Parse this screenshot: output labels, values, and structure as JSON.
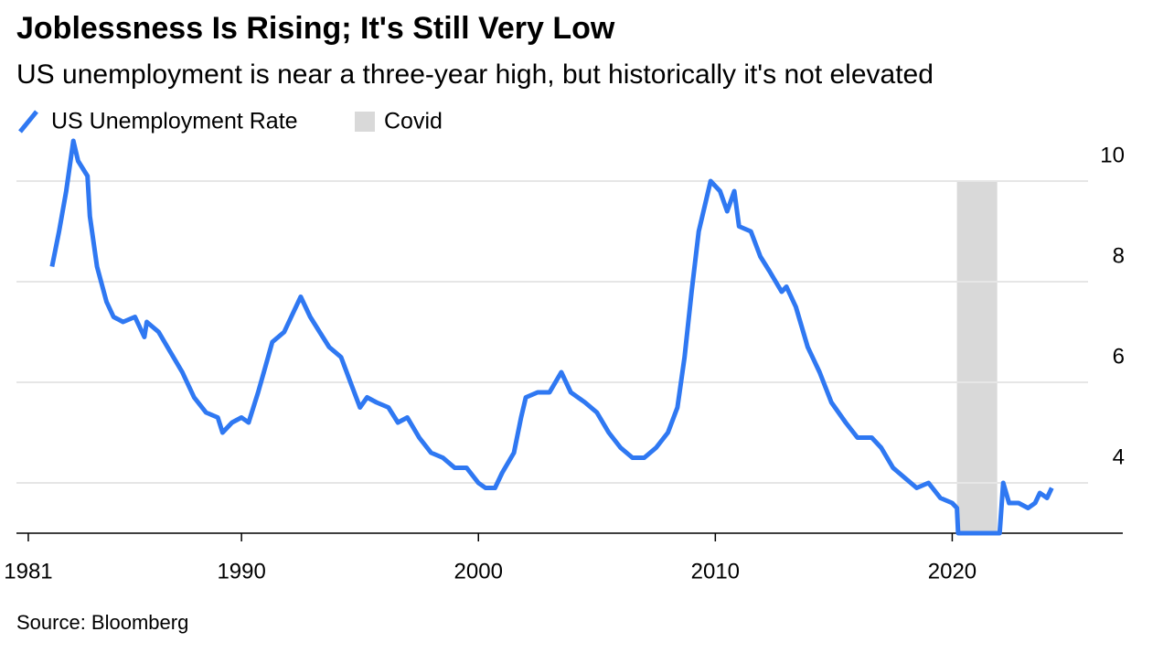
{
  "chart_data": {
    "type": "line",
    "title": "Joblessness Is Rising; It's Still Very Low",
    "subtitle": "US unemployment is near a three-year high, but historically it's not elevated",
    "source": "Source: Bloomberg",
    "x": [
      1982.0,
      1982.3,
      1982.6,
      1982.9,
      1983.1,
      1983.5,
      1983.6,
      1983.9,
      1984.3,
      1984.6,
      1985.0,
      1985.5,
      1985.9,
      1986.0,
      1986.5,
      1987.0,
      1987.5,
      1988.0,
      1988.5,
      1989.0,
      1989.2,
      1989.6,
      1990.0,
      1990.3,
      1990.7,
      1991.0,
      1991.3,
      1991.8,
      1992.2,
      1992.5,
      1992.9,
      1993.3,
      1993.7,
      1994.2,
      1994.6,
      1995.0,
      1995.3,
      1995.7,
      1996.2,
      1996.6,
      1997.0,
      1997.5,
      1998.0,
      1998.5,
      1999.0,
      1999.5,
      2000.0,
      2000.3,
      2000.7,
      2001.0,
      2001.5,
      2001.8,
      2002.0,
      2002.5,
      2003.0,
      2003.5,
      2003.9,
      2004.5,
      2005.0,
      2005.5,
      2006.0,
      2006.5,
      2007.0,
      2007.5,
      2008.0,
      2008.4,
      2008.7,
      2009.0,
      2009.3,
      2009.6,
      2009.8,
      2010.2,
      2010.5,
      2010.8,
      2011.0,
      2011.5,
      2011.9,
      2012.3,
      2012.8,
      2013.0,
      2013.4,
      2013.9,
      2014.4,
      2014.9,
      2015.5,
      2016.0,
      2016.6,
      2017.0,
      2017.5,
      2018.0,
      2018.5,
      2019.0,
      2019.5,
      2020.0,
      2020.2,
      2020.25,
      2022.0,
      2022.15,
      2022.4,
      2022.8,
      2023.2,
      2023.5,
      2023.7,
      2024.0,
      2024.2
    ],
    "series": [
      {
        "name": "US Unemployment Rate",
        "color": "#2f78f2",
        "values": [
          8.3,
          9.0,
          9.8,
          10.8,
          10.4,
          10.1,
          9.3,
          8.3,
          7.6,
          7.3,
          7.2,
          7.3,
          6.9,
          7.2,
          7.0,
          6.6,
          6.2,
          5.7,
          5.4,
          5.3,
          5.0,
          5.2,
          5.3,
          5.2,
          5.8,
          6.3,
          6.8,
          7.0,
          7.4,
          7.7,
          7.3,
          7.0,
          6.7,
          6.5,
          6.0,
          5.5,
          5.7,
          5.6,
          5.5,
          5.2,
          5.3,
          4.9,
          4.6,
          4.5,
          4.3,
          4.3,
          4.0,
          3.9,
          3.9,
          4.2,
          4.6,
          5.3,
          5.7,
          5.8,
          5.8,
          6.2,
          5.8,
          5.6,
          5.4,
          5.0,
          4.7,
          4.5,
          4.5,
          4.7,
          5.0,
          5.5,
          6.5,
          7.8,
          9.0,
          9.6,
          10.0,
          9.8,
          9.4,
          9.8,
          9.1,
          9.0,
          8.5,
          8.2,
          7.8,
          7.9,
          7.5,
          6.7,
          6.2,
          5.6,
          5.2,
          4.9,
          4.9,
          4.7,
          4.3,
          4.1,
          3.9,
          4.0,
          3.7,
          3.6,
          3.5,
          3.0,
          3.0,
          4.0,
          3.6,
          3.6,
          3.5,
          3.6,
          3.8,
          3.7,
          3.9
        ]
      }
    ],
    "bands": [
      {
        "name": "Covid",
        "color": "#d9d9d9",
        "x": [
          2020.2,
          2021.9
        ],
        "y": [
          3.0,
          10
        ]
      }
    ],
    "xlim": [
      1980.5,
      2027.2
    ],
    "xticks": [
      1981,
      1990,
      2000,
      2010,
      2020
    ],
    "ylim": [
      3.0,
      10.9
    ],
    "yticks": [
      4,
      6,
      8,
      10
    ],
    "grid": true
  }
}
